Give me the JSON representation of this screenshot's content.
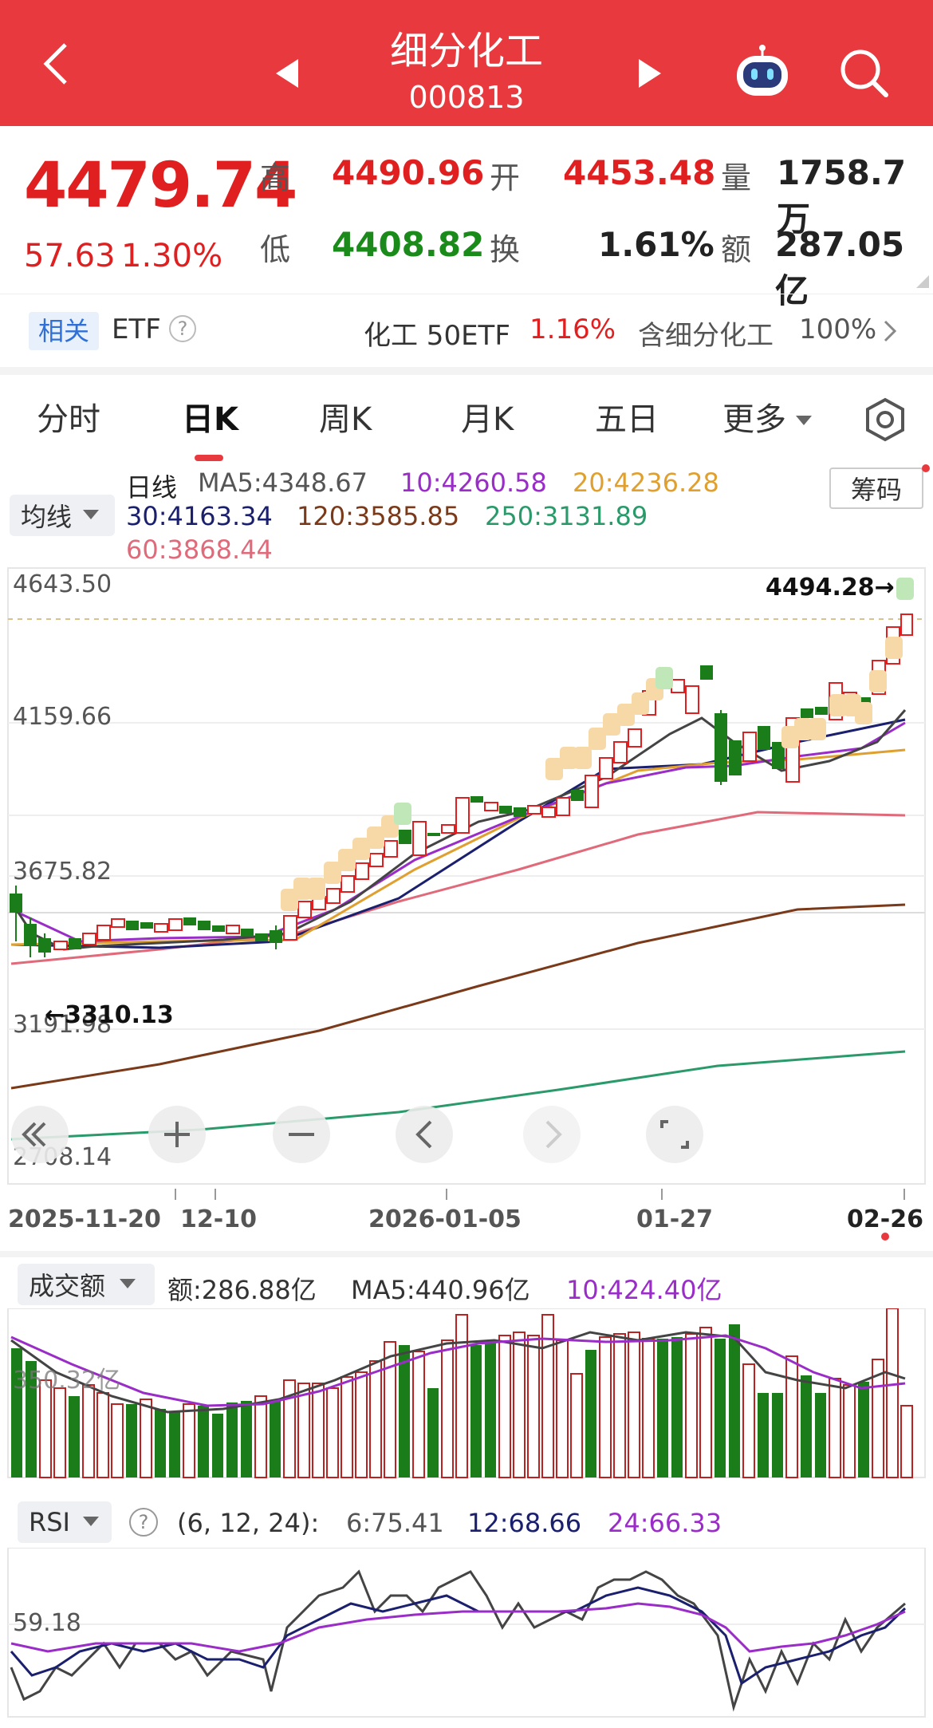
{
  "header": {
    "title": "细分化工",
    "code": "000813"
  },
  "quote": {
    "price": "4479.74",
    "change": "57.63",
    "change_pct": "1.30%",
    "high_label": "高",
    "high": "4490.96",
    "open_label": "开",
    "open": "4453.48",
    "volume_label": "量",
    "volume": "1758.7万",
    "low_label": "低",
    "low": "4408.82",
    "turnover_label": "换",
    "turnover": "1.61%",
    "amount_label": "额",
    "amount": "287.05亿"
  },
  "etf_bar": {
    "tag": "相关",
    "label": "ETF",
    "help": "?",
    "name": "化工 50ETF",
    "pct": "1.16%",
    "contains": "含细分化工",
    "weight": "100%"
  },
  "tabs": [
    "分时",
    "日K",
    "周K",
    "月K",
    "五日",
    "更多"
  ],
  "active_tab": "日K",
  "ma_legend": {
    "indicator": "均线",
    "type": "日线",
    "ma5": "MA5:4348.67",
    "ma10": "10:4260.58",
    "ma20": "20:4236.28",
    "ma30": "30:4163.34",
    "ma120": "120:3585.85",
    "ma250": "250:3131.89",
    "ma60": "60:3868.44",
    "chip_button": "筹码"
  },
  "price_chart": {
    "y_labels": [
      "4643.50",
      "4159.66",
      "3675.82",
      "3191.98",
      "2708.14"
    ],
    "high_marker": "4494.28→",
    "low_marker": "←3310.13",
    "x_labels": [
      "2025-11-20",
      "12-10",
      "2026-01-05",
      "01-27",
      "02-26"
    ]
  },
  "volume_legend": {
    "indicator": "成交额",
    "amount": "额:286.88亿",
    "ma5": "MA5:440.96亿",
    "ma10": "10:424.40亿",
    "y_label": "350.32亿"
  },
  "rsi_legend": {
    "indicator": "RSI",
    "help": "?",
    "params": "(6, 12, 24):",
    "rsi6": "6:75.41",
    "rsi12": "12:68.66",
    "rsi24": "24:66.33",
    "y_label": "59.18"
  },
  "colors": {
    "brand": "#e8393e",
    "up": "#e02020",
    "down": "#1a7d1a",
    "ma5": "#444444",
    "ma10": "#9a2dc8",
    "ma20": "#e0a030",
    "ma30": "#1a1f6e",
    "ma60": "#e06a7a",
    "ma120": "#7a3a1a",
    "ma250": "#2a9a6a"
  }
}
